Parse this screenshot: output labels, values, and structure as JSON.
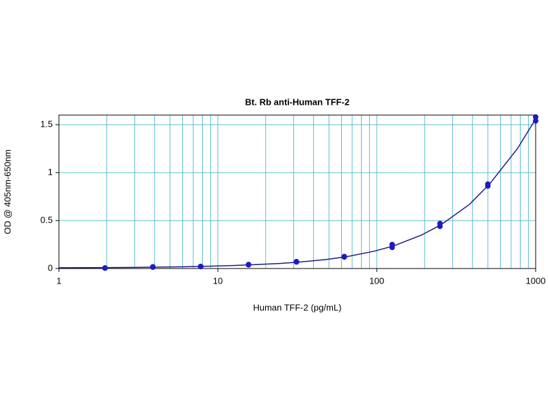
{
  "chart_data": {
    "type": "scatter",
    "title": "Bt. Rb anti-Human TFF-2",
    "x_label": "Human TFF-2 (pg/mL)",
    "y_label": "OD @ 405nm-650nm",
    "xscale": "log",
    "xlim": [
      1,
      1000
    ],
    "xticks": [
      1,
      10,
      100,
      1000
    ],
    "ylim": [
      0,
      1.6
    ],
    "yticks": [
      0,
      0.5,
      1,
      1.5
    ],
    "grid": true,
    "minor_grid": true,
    "grid_color": "#5bbccf",
    "series": [
      {
        "type": "scatter",
        "color": "#1c1cc0",
        "x": [
          1.95,
          1.95,
          3.9,
          3.9,
          7.8,
          7.8,
          15.6,
          15.6,
          31.25,
          31.25,
          62.5,
          62.5,
          125,
          125,
          250,
          250,
          500,
          500,
          1000,
          1000
        ],
        "values": [
          0.004,
          0.006,
          0.014,
          0.018,
          0.02,
          0.022,
          0.038,
          0.042,
          0.068,
          0.072,
          0.12,
          0.125,
          0.22,
          0.25,
          0.44,
          0.47,
          0.86,
          0.88,
          1.54,
          1.58
        ]
      },
      {
        "type": "line",
        "color": "#1a1a88",
        "x": [
          1,
          1.5,
          2,
          3,
          4,
          6,
          8,
          12,
          16,
          24,
          32,
          48,
          64,
          96,
          128,
          192,
          256,
          384,
          512,
          768,
          1000
        ],
        "values": [
          0.008,
          0.009,
          0.01,
          0.012,
          0.014,
          0.018,
          0.022,
          0.03,
          0.038,
          0.052,
          0.066,
          0.094,
          0.122,
          0.18,
          0.236,
          0.35,
          0.46,
          0.67,
          0.88,
          1.25,
          1.56
        ]
      }
    ]
  }
}
